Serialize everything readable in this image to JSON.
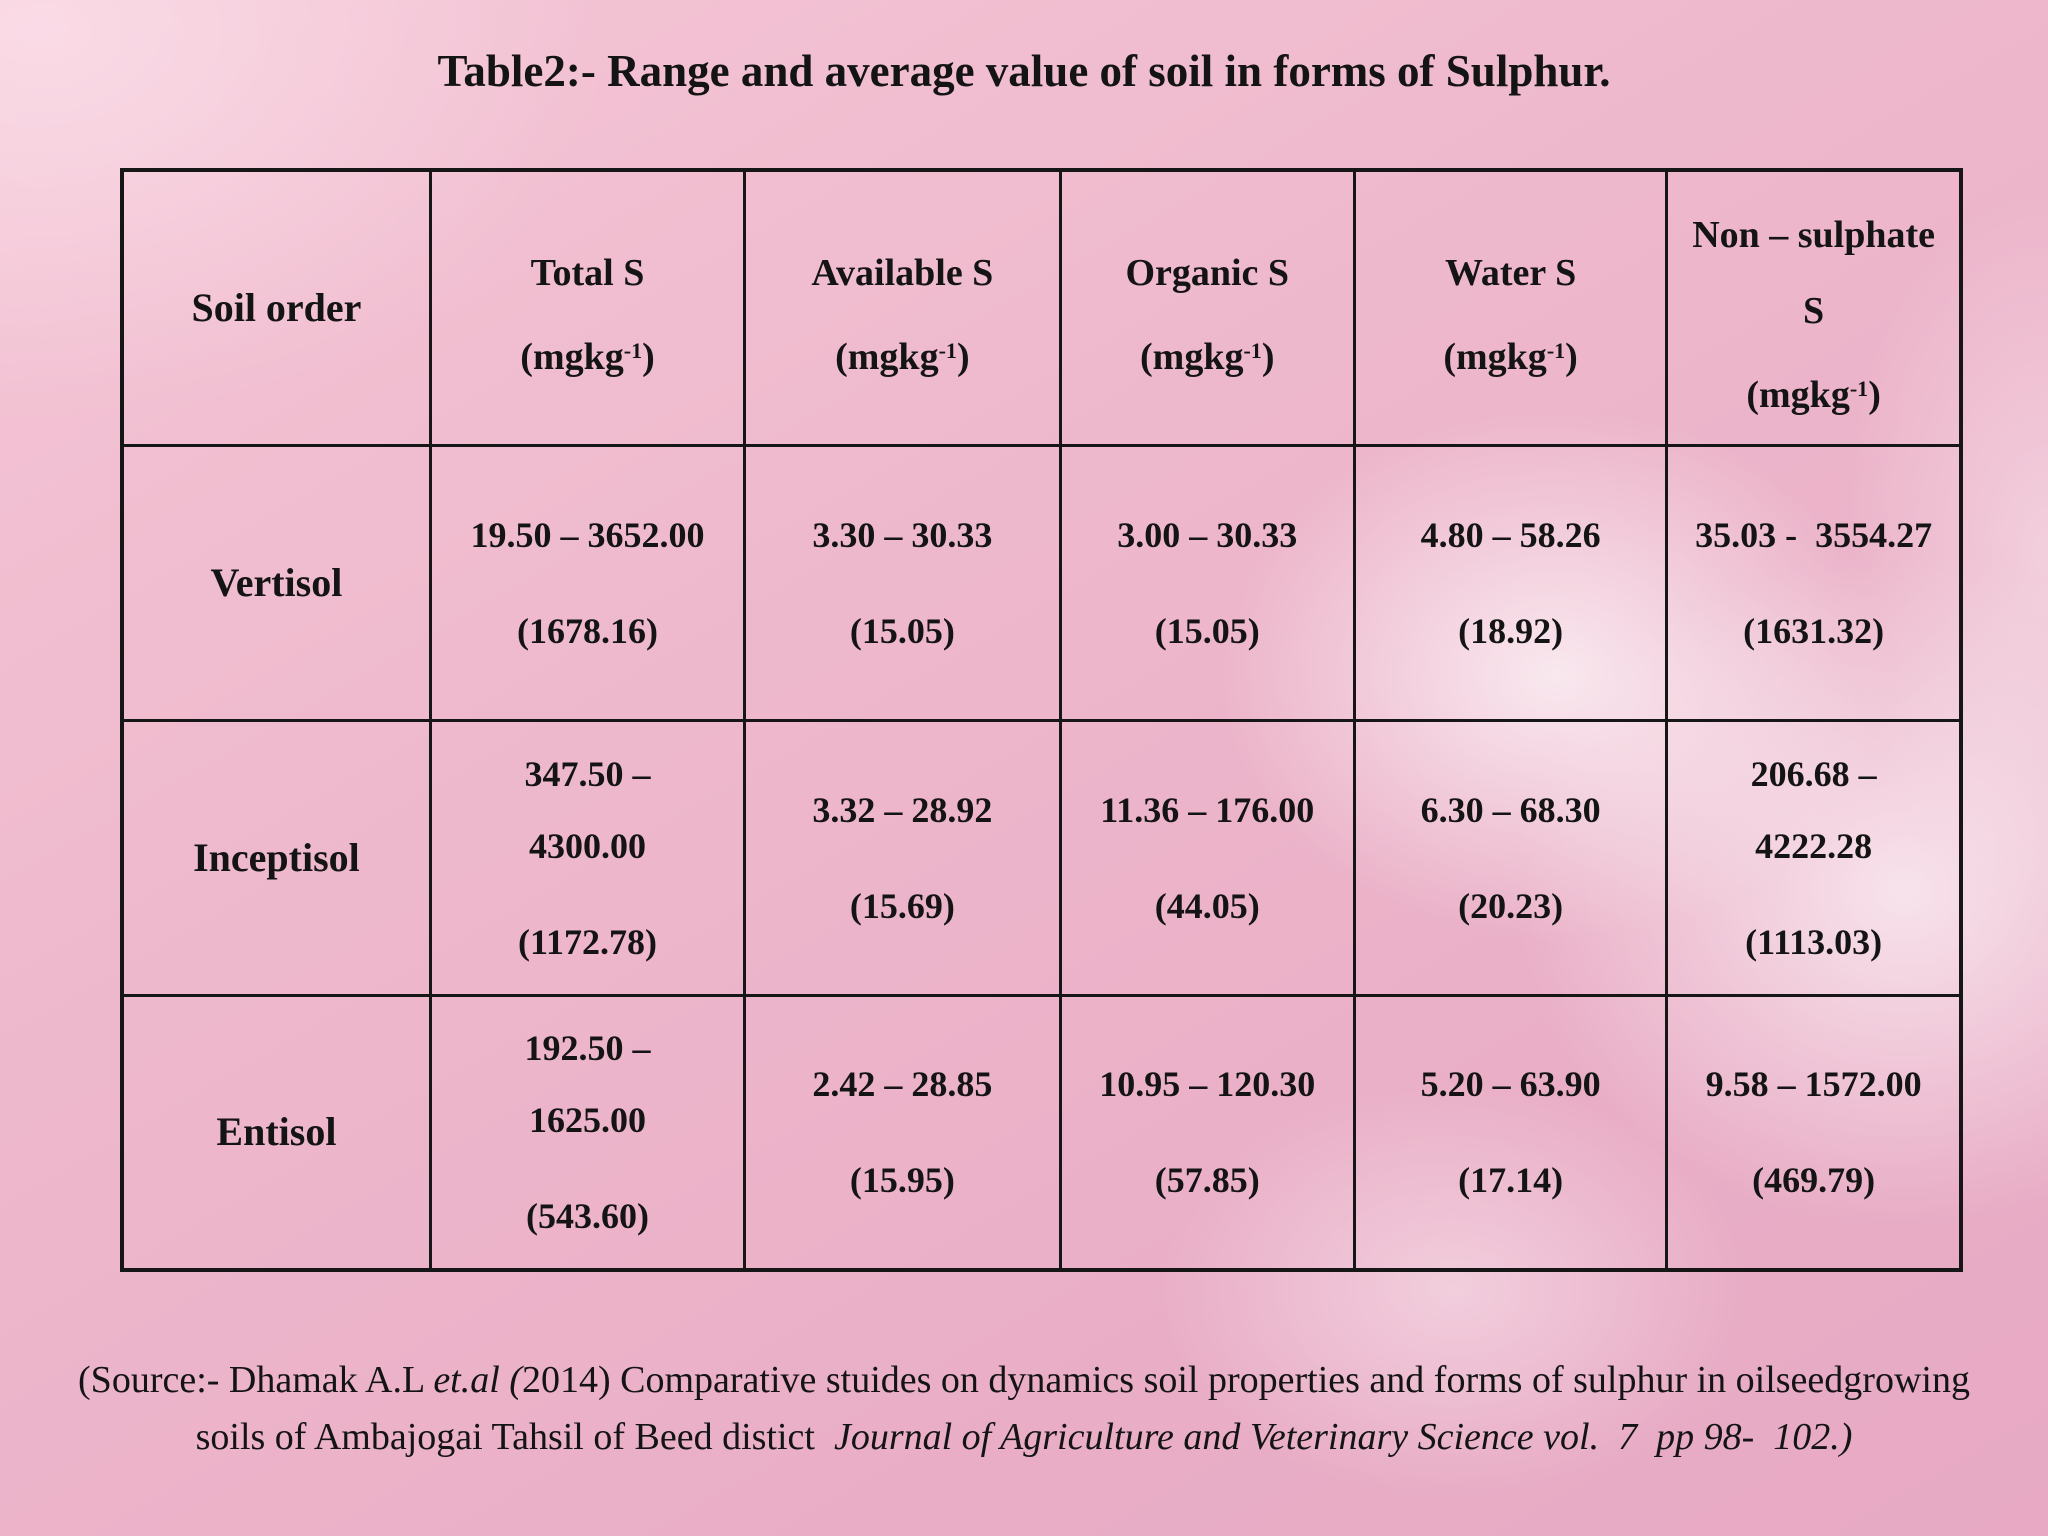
{
  "title": "Table2:- Range and average value of soil in forms of Sulphur.",
  "colors": {
    "background_pink": "#eeb6cb",
    "feather_highlight": "#f7eef3",
    "text": "#141414",
    "table_border": "#161616"
  },
  "table": {
    "row_header_label": "Soil order",
    "unit": {
      "open": "(mgkg",
      "sup": "-1",
      "close": ")"
    },
    "columns": [
      {
        "label": "Total S"
      },
      {
        "label": "Available S"
      },
      {
        "label": "Organic S"
      },
      {
        "label": "Water S"
      },
      {
        "label": "Non – sulphate\nS"
      }
    ],
    "rows": [
      {
        "name": "Vertisol",
        "cells": [
          {
            "range": "19.50 – 3652.00",
            "avg": "(1678.16)"
          },
          {
            "range": "3.30 – 30.33",
            "avg": "(15.05)"
          },
          {
            "range": "3.00 – 30.33",
            "avg": "(15.05)"
          },
          {
            "range": "4.80 – 58.26",
            "avg": "(18.92)"
          },
          {
            "range": "35.03 -  3554.27",
            "avg": "(1631.32)"
          }
        ]
      },
      {
        "name": "Inceptisol",
        "cells": [
          {
            "range": "347.50 –\n4300.00",
            "avg": "(1172.78)"
          },
          {
            "range": "3.32 – 28.92",
            "avg": "(15.69)"
          },
          {
            "range": "11.36 – 176.00",
            "avg": "(44.05)"
          },
          {
            "range": "6.30 – 68.30",
            "avg": "(20.23)"
          },
          {
            "range": "206.68 –\n4222.28",
            "avg": "(1113.03)"
          }
        ]
      },
      {
        "name": "Entisol",
        "cells": [
          {
            "range": "192.50 –\n1625.00",
            "avg": "(543.60)"
          },
          {
            "range": "2.42 – 28.85",
            "avg": "(15.95)"
          },
          {
            "range": "10.95 – 120.30",
            "avg": "(57.85)"
          },
          {
            "range": "5.20 – 63.90",
            "avg": "(17.14)"
          },
          {
            "range": "9.58 – 1572.00",
            "avg": "(469.79)"
          }
        ]
      }
    ]
  },
  "source": {
    "l1a": "(Source:- Dhamak A.L ",
    "l1b_italic": "et.al (",
    "l1c": "2014) Comparative stuides on dynamics soil properties and forms of sulphur in oilseedgrowing",
    "l2a": "soils of Ambajogai Tahsil of Beed distict  ",
    "l2b_italic": "Journal of Agriculture and Veterinary Science vol.  7  pp 98-  102.)"
  }
}
